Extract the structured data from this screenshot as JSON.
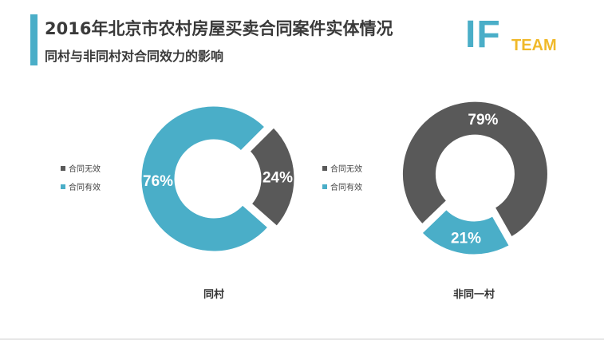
{
  "header": {
    "title": "2016年北京市农村房屋买卖合同案件实体情况",
    "subtitle": "同村与非同村对合同效力的影响"
  },
  "logo": {
    "main": "IF",
    "sub": "TEAM"
  },
  "colors": {
    "invalid": "#595959",
    "valid": "#4aaec8",
    "accent": "#4aaec8",
    "logo_sub": "#f0b92a"
  },
  "chart_data": [
    {
      "type": "pie",
      "donut": true,
      "title": "同村",
      "legend": [
        "合同无效",
        "合同有效"
      ],
      "legend_position": "left",
      "slices": [
        {
          "name": "合同无效",
          "value": 24,
          "label": "24%"
        },
        {
          "name": "合同有效",
          "value": 76,
          "label": "76%"
        }
      ]
    },
    {
      "type": "pie",
      "donut": true,
      "title": "非同一村",
      "legend": [
        "合同无效",
        "合同有效"
      ],
      "legend_position": "left",
      "slices": [
        {
          "name": "合同无效",
          "value": 79,
          "label": "79%"
        },
        {
          "name": "合同有效",
          "value": 21,
          "label": "21%"
        }
      ]
    }
  ]
}
